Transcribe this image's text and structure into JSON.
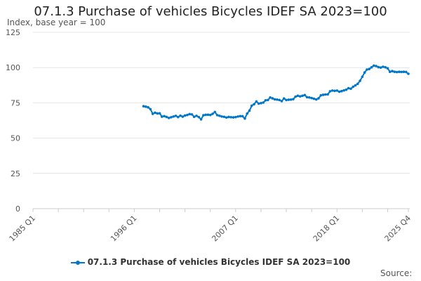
{
  "chart_data": {
    "type": "line",
    "title": "07.1.3 Purchase of vehicles Bicycles IDEF SA 2023=100",
    "ylabel": "Index, base year = 100",
    "xlabel": "",
    "ylim": [
      0,
      125
    ],
    "yticks": [
      0,
      25,
      50,
      75,
      100,
      125
    ],
    "xrange": [
      "1985 Q1",
      "2025 Q4"
    ],
    "xtick_labels": [
      "1985 Q1",
      "1996 Q1",
      "2007 Q1",
      "2018 Q1",
      "2025 Q4"
    ],
    "grid": "horizontal",
    "legend_position": "bottom",
    "color": "#0077c8",
    "series": [
      {
        "name": "07.1.3 Purchase of vehicles Bicycles IDEF SA 2023=100",
        "start": "1997 Q1",
        "values": [
          72.6,
          72.3,
          71.8,
          70.5,
          67.2,
          68.0,
          67.5,
          67.6,
          65.2,
          65.6,
          65.0,
          64.3,
          64.8,
          65.3,
          65.8,
          64.9,
          65.9,
          65.2,
          66.0,
          66.4,
          67.0,
          66.8,
          65.1,
          65.8,
          64.9,
          63.3,
          66.2,
          66.5,
          66.6,
          66.4,
          67.2,
          68.5,
          66.3,
          65.8,
          65.3,
          65.1,
          64.6,
          65.0,
          64.8,
          64.7,
          64.9,
          65.3,
          65.6,
          65.5,
          63.9,
          67.4,
          69.5,
          73.0,
          74.0,
          76.0,
          74.5,
          74.8,
          75.2,
          76.8,
          77.0,
          78.8,
          78.2,
          77.5,
          77.3,
          77.0,
          76.2,
          78.1,
          77.0,
          77.2,
          77.3,
          77.6,
          79.4,
          80.0,
          79.6,
          80.0,
          80.5,
          79.0,
          78.8,
          78.4,
          77.9,
          77.4,
          78.2,
          80.3,
          80.7,
          80.9,
          81.0,
          83.2,
          83.7,
          83.5,
          83.7,
          82.9,
          83.3,
          83.8,
          84.3,
          85.4,
          85.0,
          86.4,
          87.4,
          88.5,
          90.6,
          93.5,
          96.5,
          98.6,
          99.0,
          100.2,
          101.4,
          101.1,
          100.3,
          100.0,
          100.6,
          100.2,
          99.5,
          97.0,
          97.5,
          97.0,
          96.8,
          97.0,
          96.9,
          97.0,
          96.9,
          95.6
        ]
      }
    ]
  },
  "source_label": "Source:"
}
